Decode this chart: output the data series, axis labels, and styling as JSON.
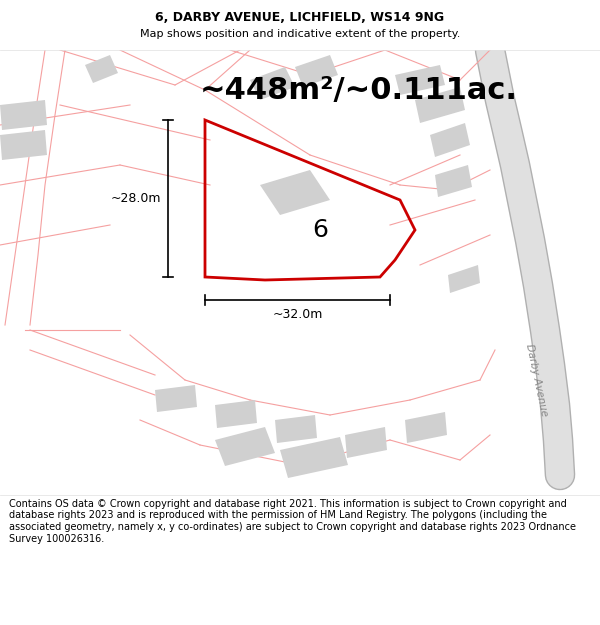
{
  "title_line1": "6, DARBY AVENUE, LICHFIELD, WS14 9NG",
  "title_line2": "Map shows position and indicative extent of the property.",
  "area_label": "~448m²/~0.111ac.",
  "lot_number": "6",
  "dim_height": "~28.0m",
  "dim_width": "~32.0m",
  "footer_text": "Contains OS data © Crown copyright and database right 2021. This information is subject to Crown copyright and database rights 2023 and is reproduced with the permission of HM Land Registry. The polygons (including the associated geometry, namely x, y co-ordinates) are subject to Crown copyright and database rights 2023 Ordnance Survey 100026316.",
  "bg_color": "#ffffff",
  "map_bg": "#ffffff",
  "pink": "#f5a0a0",
  "red": "#cc0000",
  "gray": "#d0d0d0",
  "road_gray": "#c8c8c8",
  "header_fontsize": 9,
  "subtitle_fontsize": 8,
  "area_fontsize": 22,
  "lot_fontsize": 18,
  "dim_fontsize": 9,
  "footer_fontsize": 7
}
